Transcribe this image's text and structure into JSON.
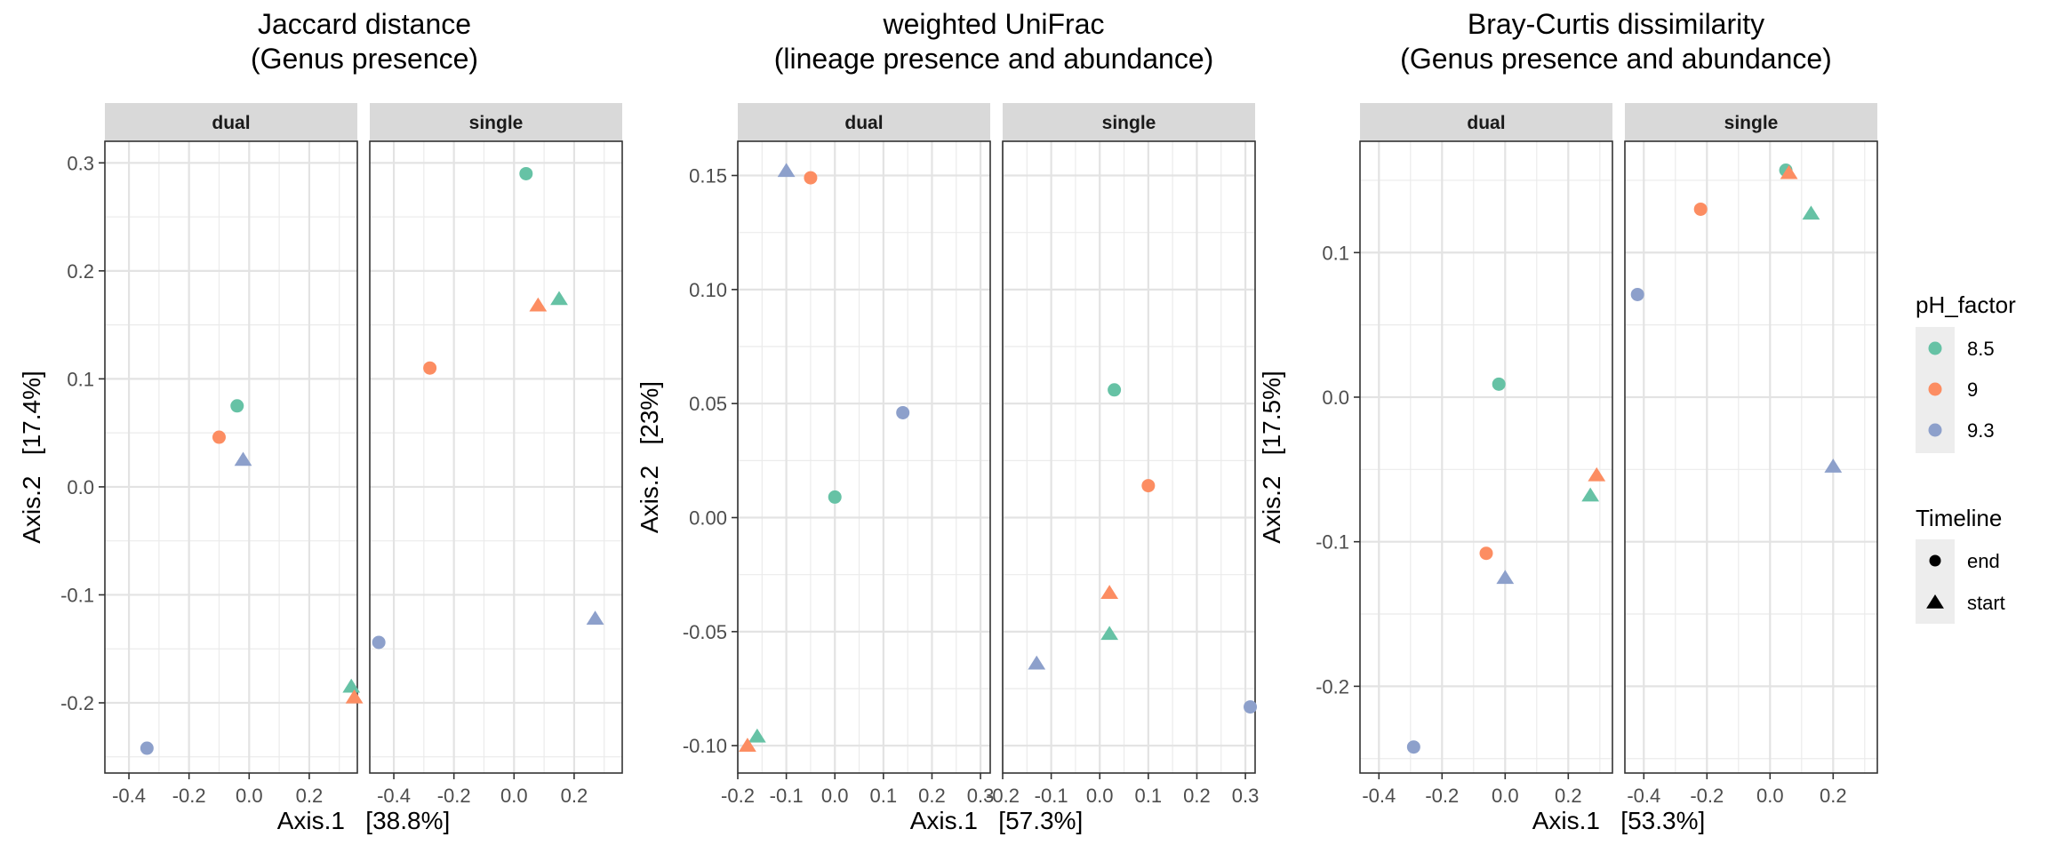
{
  "colors": {
    "ph_8_5": "#66C2A5",
    "ph_9": "#FC8D62",
    "ph_9_3": "#8DA0CB",
    "strip_bg": "#D9D9D9",
    "grid": "#EBEBEB",
    "legend_key_bg": "#EDEDED"
  },
  "legend": {
    "ph_title": "pH_factor",
    "ph_items": [
      {
        "label": "8.5",
        "color": "#66C2A5"
      },
      {
        "label": "9",
        "color": "#FC8D62"
      },
      {
        "label": "9.3",
        "color": "#8DA0CB"
      }
    ],
    "timeline_title": "Timeline",
    "timeline_items": [
      {
        "label": "end",
        "shape": "circle"
      },
      {
        "label": "start",
        "shape": "triangle"
      }
    ]
  },
  "chart_data": [
    {
      "type": "scatter",
      "title": "Jaccard distance",
      "subtitle": "(Genus presence)",
      "xlabel": "Axis.1   [38.8%]",
      "ylabel": "Axis.2   [17.4%]",
      "facets": [
        "dual",
        "single"
      ],
      "xlim": [
        -0.48,
        0.36
      ],
      "ylim": [
        -0.265,
        0.32
      ],
      "xticks": [
        -0.4,
        -0.2,
        0.0,
        0.2
      ],
      "xtick_labels": [
        "-0.4",
        "-0.2",
        "0.0",
        "0.2"
      ],
      "yticks": [
        -0.2,
        -0.1,
        0.0,
        0.1,
        0.2,
        0.3
      ],
      "ytick_labels": [
        "-0.2",
        "-0.1",
        "0.0",
        "0.1",
        "0.2",
        "0.3"
      ],
      "points": [
        {
          "facet": "dual",
          "x": -0.04,
          "y": 0.075,
          "ph": "8.5",
          "timeline": "end"
        },
        {
          "facet": "dual",
          "x": -0.1,
          "y": 0.046,
          "ph": "9",
          "timeline": "end"
        },
        {
          "facet": "dual",
          "x": -0.02,
          "y": 0.025,
          "ph": "9.3",
          "timeline": "start"
        },
        {
          "facet": "dual",
          "x": 0.34,
          "y": -0.185,
          "ph": "8.5",
          "timeline": "start"
        },
        {
          "facet": "dual",
          "x": 0.35,
          "y": -0.195,
          "ph": "9",
          "timeline": "start"
        },
        {
          "facet": "dual",
          "x": -0.34,
          "y": -0.242,
          "ph": "9.3",
          "timeline": "end"
        },
        {
          "facet": "single",
          "x": 0.04,
          "y": 0.29,
          "ph": "8.5",
          "timeline": "end"
        },
        {
          "facet": "single",
          "x": 0.15,
          "y": 0.174,
          "ph": "8.5",
          "timeline": "start"
        },
        {
          "facet": "single",
          "x": 0.08,
          "y": 0.168,
          "ph": "9",
          "timeline": "start"
        },
        {
          "facet": "single",
          "x": -0.28,
          "y": 0.11,
          "ph": "9",
          "timeline": "end"
        },
        {
          "facet": "single",
          "x": 0.27,
          "y": -0.122,
          "ph": "9.3",
          "timeline": "start"
        },
        {
          "facet": "single",
          "x": -0.45,
          "y": -0.144,
          "ph": "9.3",
          "timeline": "end"
        }
      ]
    },
    {
      "type": "scatter",
      "title": "weighted UniFrac",
      "subtitle": "(lineage presence and abundance)",
      "xlabel": "Axis.1   [57.3%]",
      "ylabel": "Axis.2   [23%]",
      "facets": [
        "dual",
        "single"
      ],
      "xlim": [
        -0.2,
        0.32
      ],
      "ylim": [
        -0.112,
        0.165
      ],
      "xticks": [
        -0.2,
        -0.1,
        0.0,
        0.1,
        0.2,
        0.3
      ],
      "xtick_labels": [
        "-0.2",
        "-0.1",
        "0.0",
        "0.1",
        "0.2",
        "0.3"
      ],
      "yticks": [
        -0.1,
        -0.05,
        0.0,
        0.05,
        0.1,
        0.15
      ],
      "ytick_labels": [
        "-0.10",
        "-0.05",
        "0.00",
        "0.05",
        "0.10",
        "0.15"
      ],
      "points": [
        {
          "facet": "dual",
          "x": -0.1,
          "y": 0.152,
          "ph": "9.3",
          "timeline": "start"
        },
        {
          "facet": "dual",
          "x": -0.05,
          "y": 0.149,
          "ph": "9",
          "timeline": "end"
        },
        {
          "facet": "dual",
          "x": 0.14,
          "y": 0.046,
          "ph": "9.3",
          "timeline": "end"
        },
        {
          "facet": "dual",
          "x": 0.0,
          "y": 0.009,
          "ph": "8.5",
          "timeline": "end"
        },
        {
          "facet": "dual",
          "x": -0.16,
          "y": -0.096,
          "ph": "8.5",
          "timeline": "start"
        },
        {
          "facet": "dual",
          "x": -0.18,
          "y": -0.1,
          "ph": "9",
          "timeline": "start"
        },
        {
          "facet": "single",
          "x": 0.03,
          "y": 0.056,
          "ph": "8.5",
          "timeline": "end"
        },
        {
          "facet": "single",
          "x": 0.1,
          "y": 0.014,
          "ph": "9",
          "timeline": "end"
        },
        {
          "facet": "single",
          "x": 0.02,
          "y": -0.033,
          "ph": "9",
          "timeline": "start"
        },
        {
          "facet": "single",
          "x": 0.02,
          "y": -0.051,
          "ph": "8.5",
          "timeline": "start"
        },
        {
          "facet": "single",
          "x": -0.13,
          "y": -0.064,
          "ph": "9.3",
          "timeline": "start"
        },
        {
          "facet": "single",
          "x": 0.31,
          "y": -0.083,
          "ph": "9.3",
          "timeline": "end"
        }
      ]
    },
    {
      "type": "scatter",
      "title": "Bray-Curtis dissimilarity",
      "subtitle": "(Genus presence and abundance)",
      "xlabel": "Axis.1   [53.3%]",
      "ylabel": "Axis.2   [17.5%]",
      "facets": [
        "dual",
        "single"
      ],
      "xlim": [
        -0.46,
        0.34
      ],
      "ylim": [
        -0.26,
        0.177
      ],
      "xticks": [
        -0.4,
        -0.2,
        0.0,
        0.2
      ],
      "xtick_labels": [
        "-0.4",
        "-0.2",
        "0.0",
        "0.2"
      ],
      "yticks": [
        -0.2,
        -0.1,
        0.0,
        0.1
      ],
      "ytick_labels": [
        "-0.2",
        "-0.1",
        "0.0",
        "0.1"
      ],
      "points": [
        {
          "facet": "dual",
          "x": -0.02,
          "y": 0.009,
          "ph": "8.5",
          "timeline": "end"
        },
        {
          "facet": "dual",
          "x": 0.29,
          "y": -0.054,
          "ph": "9",
          "timeline": "start"
        },
        {
          "facet": "dual",
          "x": 0.27,
          "y": -0.068,
          "ph": "8.5",
          "timeline": "start"
        },
        {
          "facet": "dual",
          "x": -0.06,
          "y": -0.108,
          "ph": "9",
          "timeline": "end"
        },
        {
          "facet": "dual",
          "x": 0.0,
          "y": -0.125,
          "ph": "9.3",
          "timeline": "start"
        },
        {
          "facet": "dual",
          "x": -0.29,
          "y": -0.242,
          "ph": "9.3",
          "timeline": "end"
        },
        {
          "facet": "single",
          "x": 0.05,
          "y": 0.157,
          "ph": "8.5",
          "timeline": "end"
        },
        {
          "facet": "single",
          "x": 0.06,
          "y": 0.155,
          "ph": "9",
          "timeline": "start"
        },
        {
          "facet": "single",
          "x": -0.22,
          "y": 0.13,
          "ph": "9",
          "timeline": "end"
        },
        {
          "facet": "single",
          "x": 0.13,
          "y": 0.127,
          "ph": "8.5",
          "timeline": "start"
        },
        {
          "facet": "single",
          "x": -0.42,
          "y": 0.071,
          "ph": "9.3",
          "timeline": "end"
        },
        {
          "facet": "single",
          "x": 0.2,
          "y": -0.048,
          "ph": "9.3",
          "timeline": "start"
        }
      ]
    }
  ]
}
